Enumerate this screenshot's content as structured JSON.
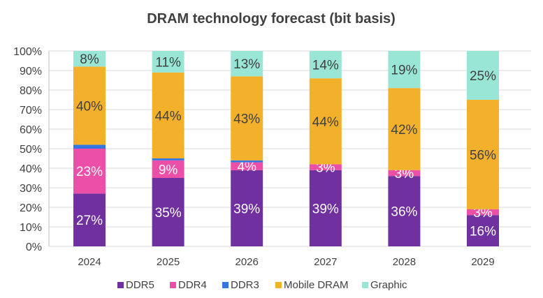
{
  "chart_data": {
    "type": "bar",
    "stacked": true,
    "title": "DRAM technology forecast (bit basis)",
    "categories": [
      "2024",
      "2025",
      "2026",
      "2027",
      "2028",
      "2029"
    ],
    "ylim": [
      0,
      100
    ],
    "yticks": [
      "0%",
      "10%",
      "20%",
      "30%",
      "40%",
      "50%",
      "60%",
      "70%",
      "80%",
      "90%",
      "100%"
    ],
    "grid": true,
    "legend_position": "bottom",
    "series": [
      {
        "name": "DDR5",
        "color": "#7030a0",
        "values": [
          27,
          35,
          39,
          39,
          36,
          16
        ],
        "labels": [
          "27%",
          "35%",
          "39%",
          "39%",
          "36%",
          "16%"
        ],
        "label_color": "#ffffff"
      },
      {
        "name": "DDR4",
        "color": "#ec4fa8",
        "values": [
          23,
          9,
          4,
          3,
          3,
          3
        ],
        "labels": [
          "23%",
          "9%",
          "4%",
          "3%",
          "3%",
          "3%"
        ],
        "label_color": "#ffffff"
      },
      {
        "name": "DDR3",
        "color": "#3475e0",
        "values": [
          2,
          1,
          1,
          0,
          0,
          0
        ],
        "labels": [
          "",
          "",
          "",
          "",
          "",
          ""
        ],
        "label_color": "#ffffff"
      },
      {
        "name": "Mobile DRAM",
        "color": "#f2b02b",
        "values": [
          40,
          44,
          43,
          44,
          42,
          56
        ],
        "labels": [
          "40%",
          "44%",
          "43%",
          "44%",
          "42%",
          "56%"
        ],
        "label_color": "#404040"
      },
      {
        "name": "Graphic",
        "color": "#99e6d6",
        "values": [
          8,
          11,
          13,
          14,
          19,
          25
        ],
        "labels": [
          "8%",
          "11%",
          "13%",
          "14%",
          "19%",
          "25%"
        ],
        "label_color": "#404040"
      }
    ]
  }
}
